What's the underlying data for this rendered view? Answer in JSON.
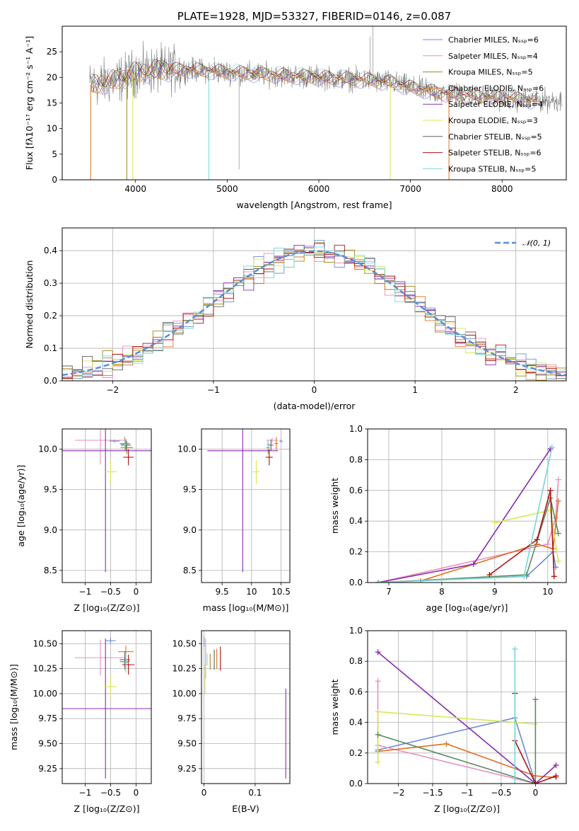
{
  "chart_data": [
    {
      "type": "line",
      "title": "PLATE=1928, MJD=53327, FIBERID=0146, z=0.087",
      "xlabel": "wavelength [Angstrom, rest frame]",
      "ylabel": "Flux [fλ10⁻¹⁷ erg cm⁻² s⁻¹ A⁻¹]",
      "xlim": [
        3200,
        8700
      ],
      "ylim": [
        0,
        30
      ],
      "xticks": [
        4000,
        5000,
        6000,
        7000,
        8000
      ],
      "yticks": [
        0,
        5,
        10,
        15,
        20,
        25
      ],
      "grid": false,
      "legend_position": "top-right",
      "series": [
        {
          "name": "Chabrier MILES, N_SSP=6",
          "color": "#6b8ad4"
        },
        {
          "name": "Salpeter MILES, N_SSP=4",
          "color": "#e88fbf"
        },
        {
          "name": "Kroupa MILES, N_SSP=5",
          "color": "#9a8a10"
        },
        {
          "name": "Chabrier ELODIE, N_SSP=6",
          "color": "#e07020"
        },
        {
          "name": "Salpeter ELODIE, N_SSP=4",
          "color": "#8a2bb0"
        },
        {
          "name": "Kroupa ELODIE, N_SSP=3",
          "color": "#d4e850"
        },
        {
          "name": "Chabrier STELIB, N_SSP=5",
          "color": "#606060"
        },
        {
          "name": "Salpeter STELIB, N_SSP=6",
          "color": "#b01010"
        },
        {
          "name": "Kroupa STELIB, N_SSP=5",
          "color": "#7ad4d8"
        }
      ],
      "continuum_x": [
        3500,
        3800,
        4000,
        4300,
        4600,
        5000,
        5500,
        6000,
        6500,
        6800,
        7000,
        7300,
        7600,
        8000,
        8300,
        8600
      ],
      "continuum_y": [
        18.5,
        19.5,
        21.0,
        21.5,
        21.5,
        21.0,
        20.5,
        20.0,
        19.5,
        19.0,
        18.0,
        17.0,
        16.5,
        16.0,
        15.5,
        15.5
      ]
    },
    {
      "type": "line",
      "xlabel": "(data-model)/error",
      "ylabel": "Normed distribution",
      "xlim": [
        -2.5,
        2.5
      ],
      "ylim": [
        0,
        0.47
      ],
      "xticks": [
        -2,
        -1,
        0,
        1,
        2
      ],
      "yticks": [
        0.0,
        0.1,
        0.2,
        0.3,
        0.4
      ],
      "grid": true,
      "legend": "𝒩(0, 1)",
      "legend_position": "top-right",
      "series": [
        {
          "name": "𝒩(0, 1)",
          "style": "dashed",
          "color": "#5b8ed6"
        }
      ]
    },
    {
      "type": "scatter",
      "xlabel": "Z [log₁₀(Z/Z⊙)]",
      "ylabel": "age  [log₁₀(age/yr)]",
      "xlim": [
        -1.45,
        0.3
      ],
      "ylim": [
        8.35,
        10.25
      ],
      "xticks": [
        -1,
        -0.5,
        0
      ],
      "yticks": [
        8.5,
        9.0,
        9.5,
        10.0
      ],
      "grid": true,
      "points": [
        {
          "x": -0.42,
          "y": 10.1,
          "xerr": 0.1,
          "yerr": 0.02,
          "color": "#6b8ad4"
        },
        {
          "x": -0.7,
          "y": 10.11,
          "xerr": 0.5,
          "yerr": 0.3,
          "color": "#e88fbf"
        },
        {
          "x": -0.22,
          "y": 10.07,
          "xerr": 0.1,
          "yerr": 0.08,
          "color": "#e07020"
        },
        {
          "x": -0.18,
          "y": 10.02,
          "xerr": 0.12,
          "yerr": 0.08,
          "color": "#9a8a10"
        },
        {
          "x": -0.6,
          "y": 9.98,
          "xerr": 0.9,
          "yerr": 1.5,
          "color": "#8a2bb0"
        },
        {
          "x": -0.5,
          "y": 9.72,
          "xerr": 0.12,
          "yerr": 0.15,
          "color": "#d4e850"
        },
        {
          "x": -0.2,
          "y": 10.05,
          "xerr": 0.1,
          "yerr": 0.07,
          "color": "#606060"
        },
        {
          "x": -0.15,
          "y": 9.9,
          "xerr": 0.1,
          "yerr": 0.1,
          "color": "#b01010"
        },
        {
          "x": -0.22,
          "y": 10.06,
          "xerr": 0.08,
          "yerr": 0.06,
          "color": "#7ad4d8"
        }
      ]
    },
    {
      "type": "scatter",
      "xlabel": "mass [log₁₀(M/M⊙)]",
      "xlim": [
        9.15,
        10.65
      ],
      "ylim": [
        8.35,
        10.25
      ],
      "xticks": [
        9.5,
        10.0,
        10.5
      ],
      "yticks": [
        8.5,
        9.0,
        9.5,
        10.0
      ],
      "grid": true,
      "points": [
        {
          "x": 10.5,
          "y": 10.1,
          "xerr": 0.03,
          "yerr": 0.02,
          "color": "#6b8ad4"
        },
        {
          "x": 10.35,
          "y": 10.11,
          "xerr": 0.1,
          "yerr": 0.03,
          "color": "#e88fbf"
        },
        {
          "x": 10.42,
          "y": 10.07,
          "xerr": 0.03,
          "yerr": 0.08,
          "color": "#e07020"
        },
        {
          "x": 10.28,
          "y": 10.02,
          "xerr": 0.03,
          "yerr": 0.08,
          "color": "#9a8a10"
        },
        {
          "x": 9.85,
          "y": 9.98,
          "xerr": 0.6,
          "yerr": 1.5,
          "color": "#8a2bb0"
        },
        {
          "x": 10.08,
          "y": 9.72,
          "xerr": 0.06,
          "yerr": 0.15,
          "color": "#d4e850"
        },
        {
          "x": 10.33,
          "y": 10.05,
          "xerr": 0.04,
          "yerr": 0.07,
          "color": "#606060"
        },
        {
          "x": 10.3,
          "y": 9.9,
          "xerr": 0.06,
          "yerr": 0.1,
          "color": "#b01010"
        },
        {
          "x": 10.28,
          "y": 10.06,
          "xerr": 0.03,
          "yerr": 0.06,
          "color": "#7ad4d8"
        }
      ]
    },
    {
      "type": "line",
      "xlabel": "age  [log₁₀(age/yr)]",
      "ylabel": "mass weight",
      "xlim": [
        6.6,
        10.35
      ],
      "ylim": [
        0,
        1.0
      ],
      "xticks": [
        7,
        8,
        9,
        10
      ],
      "yticks": [
        0.0,
        0.2,
        0.4,
        0.6,
        0.8,
        1.0
      ],
      "grid": true,
      "series": [
        {
          "color": "#6b8ad4",
          "x": [
            6.8,
            9.6,
            10.1,
            10.15
          ],
          "y": [
            0.0,
            0.04,
            0.2,
            0.1
          ]
        },
        {
          "color": "#e88fbf",
          "x": [
            6.8,
            10.0,
            10.15,
            10.2
          ],
          "y": [
            0.0,
            0.25,
            0.42,
            0.67
          ]
        },
        {
          "color": "#e07020",
          "x": [
            7.6,
            9.8,
            10.1,
            10.2
          ],
          "y": [
            0.01,
            0.25,
            0.22,
            0.53
          ]
        },
        {
          "color": "#8a2bb0",
          "x": [
            6.8,
            8.6,
            10.05
          ],
          "y": [
            0.0,
            0.12,
            0.87
          ]
        },
        {
          "color": "#d4e850",
          "x": [
            9.0,
            10.05,
            10.2
          ],
          "y": [
            0.39,
            0.47,
            0.14
          ]
        },
        {
          "color": "#5a8a60",
          "x": [
            6.8,
            9.6,
            10.05,
            10.2
          ],
          "y": [
            0.0,
            0.05,
            0.55,
            0.32
          ]
        },
        {
          "color": "#b01010",
          "x": [
            8.9,
            9.8,
            10.05,
            10.12
          ],
          "y": [
            0.05,
            0.28,
            0.6,
            0.04
          ]
        },
        {
          "color": "#7ad4d8",
          "x": [
            6.8,
            9.55,
            10.08
          ],
          "y": [
            0.0,
            0.04,
            0.88
          ]
        }
      ]
    },
    {
      "type": "scatter",
      "xlabel": "Z [log₁₀(Z/Z⊙)]",
      "ylabel": "mass [log₁₀(M/M⊙)]",
      "xlim": [
        -1.45,
        0.3
      ],
      "ylim": [
        9.1,
        10.63
      ],
      "xticks": [
        -1,
        -0.5,
        0
      ],
      "yticks": [
        9.25,
        9.5,
        9.75,
        10.0,
        10.25,
        10.5
      ],
      "grid": true,
      "points": [
        {
          "x": -0.5,
          "y": 10.53,
          "xerr": 0.1,
          "yerr": 0.03,
          "color": "#6b8ad4"
        },
        {
          "x": -0.7,
          "y": 10.36,
          "xerr": 0.5,
          "yerr": 0.18,
          "color": "#e88fbf"
        },
        {
          "x": -0.2,
          "y": 10.42,
          "xerr": 0.15,
          "yerr": 0.06,
          "color": "#e07020"
        },
        {
          "x": -0.22,
          "y": 10.32,
          "xerr": 0.1,
          "yerr": 0.08,
          "color": "#9a8a10"
        },
        {
          "x": -0.6,
          "y": 9.85,
          "xerr": 0.9,
          "yerr": 0.7,
          "color": "#8a2bb0"
        },
        {
          "x": -0.5,
          "y": 10.07,
          "xerr": 0.12,
          "yerr": 0.1,
          "color": "#d4e850"
        },
        {
          "x": -0.22,
          "y": 10.34,
          "xerr": 0.1,
          "yerr": 0.08,
          "color": "#606060"
        },
        {
          "x": -0.15,
          "y": 10.29,
          "xerr": 0.12,
          "yerr": 0.1,
          "color": "#b01010"
        },
        {
          "x": -0.2,
          "y": 10.31,
          "xerr": 0.06,
          "yerr": 0.1,
          "color": "#7ad4d8"
        }
      ]
    },
    {
      "type": "scatter",
      "xlabel": "E(B-V)",
      "xlim": [
        -0.005,
        0.168
      ],
      "ylim": [
        9.1,
        10.63
      ],
      "xticks": [
        0.0,
        0.1
      ],
      "yticks": [
        9.25,
        9.5,
        9.75,
        10.0,
        10.25,
        10.5
      ],
      "grid": true,
      "points": [
        {
          "x": 0.0,
          "y": 10.52,
          "yerr": 0.05,
          "color": "#6b8ad4"
        },
        {
          "x": 0.003,
          "y": 10.35,
          "yerr": 0.2,
          "color": "#e88fbf"
        },
        {
          "x": 0.025,
          "y": 10.35,
          "yerr": 0.1,
          "color": "#e07020"
        },
        {
          "x": 0.012,
          "y": 10.32,
          "yerr": 0.08,
          "color": "#9a8a10"
        },
        {
          "x": 0.16,
          "y": 9.6,
          "yerr": 0.45,
          "color": "#8a2bb0"
        },
        {
          "x": 0.002,
          "y": 10.15,
          "yerr": 0.15,
          "color": "#d4e850"
        },
        {
          "x": 0.02,
          "y": 10.34,
          "yerr": 0.1,
          "color": "#606060"
        },
        {
          "x": 0.032,
          "y": 10.35,
          "yerr": 0.12,
          "color": "#b01010"
        },
        {
          "x": 0.006,
          "y": 10.34,
          "yerr": 0.06,
          "color": "#7ad4d8"
        }
      ]
    },
    {
      "type": "line",
      "xlabel": "Z [log₁₀(Z/Z⊙)]",
      "ylabel": "mass weight",
      "xlim": [
        -2.45,
        0.45
      ],
      "ylim": [
        0,
        1.0
      ],
      "xticks": [
        -2.0,
        -1.5,
        -1.0,
        -0.5,
        0.0
      ],
      "yticks": [
        0.0,
        0.2,
        0.4,
        0.6,
        0.8,
        1.0
      ],
      "grid": true,
      "series": [
        {
          "color": "#6b8ad4",
          "x": [
            -2.3,
            -0.3,
            0.0
          ],
          "y": [
            0.22,
            0.43,
            0.0
          ]
        },
        {
          "color": "#e88fbf",
          "x": [
            -2.3,
            -2.3,
            0.0
          ],
          "y": [
            0.67,
            0.25,
            0.0
          ]
        },
        {
          "color": "#e07020",
          "x": [
            -2.3,
            -1.3,
            0.0,
            0.3
          ],
          "y": [
            0.21,
            0.26,
            0.05,
            0.04
          ]
        },
        {
          "color": "#8a2bb0",
          "x": [
            -2.3,
            0.0,
            0.3
          ],
          "y": [
            0.86,
            0.0,
            0.12
          ]
        },
        {
          "color": "#d4e850",
          "x": [
            -2.3,
            -2.3,
            0.0
          ],
          "y": [
            0.14,
            0.47,
            0.39
          ]
        },
        {
          "color": "#5a8a60",
          "x": [
            -2.3,
            0.0,
            0.0
          ],
          "y": [
            0.32,
            0.0,
            0.55
          ]
        },
        {
          "color": "#b01010",
          "x": [
            -0.3,
            -0.3,
            0.0,
            0.3
          ],
          "y": [
            0.59,
            0.28,
            0.0,
            0.05
          ]
        },
        {
          "color": "#7ad4d8",
          "x": [
            -0.3,
            -0.3
          ],
          "y": [
            0.88,
            0.0
          ]
        }
      ]
    }
  ]
}
